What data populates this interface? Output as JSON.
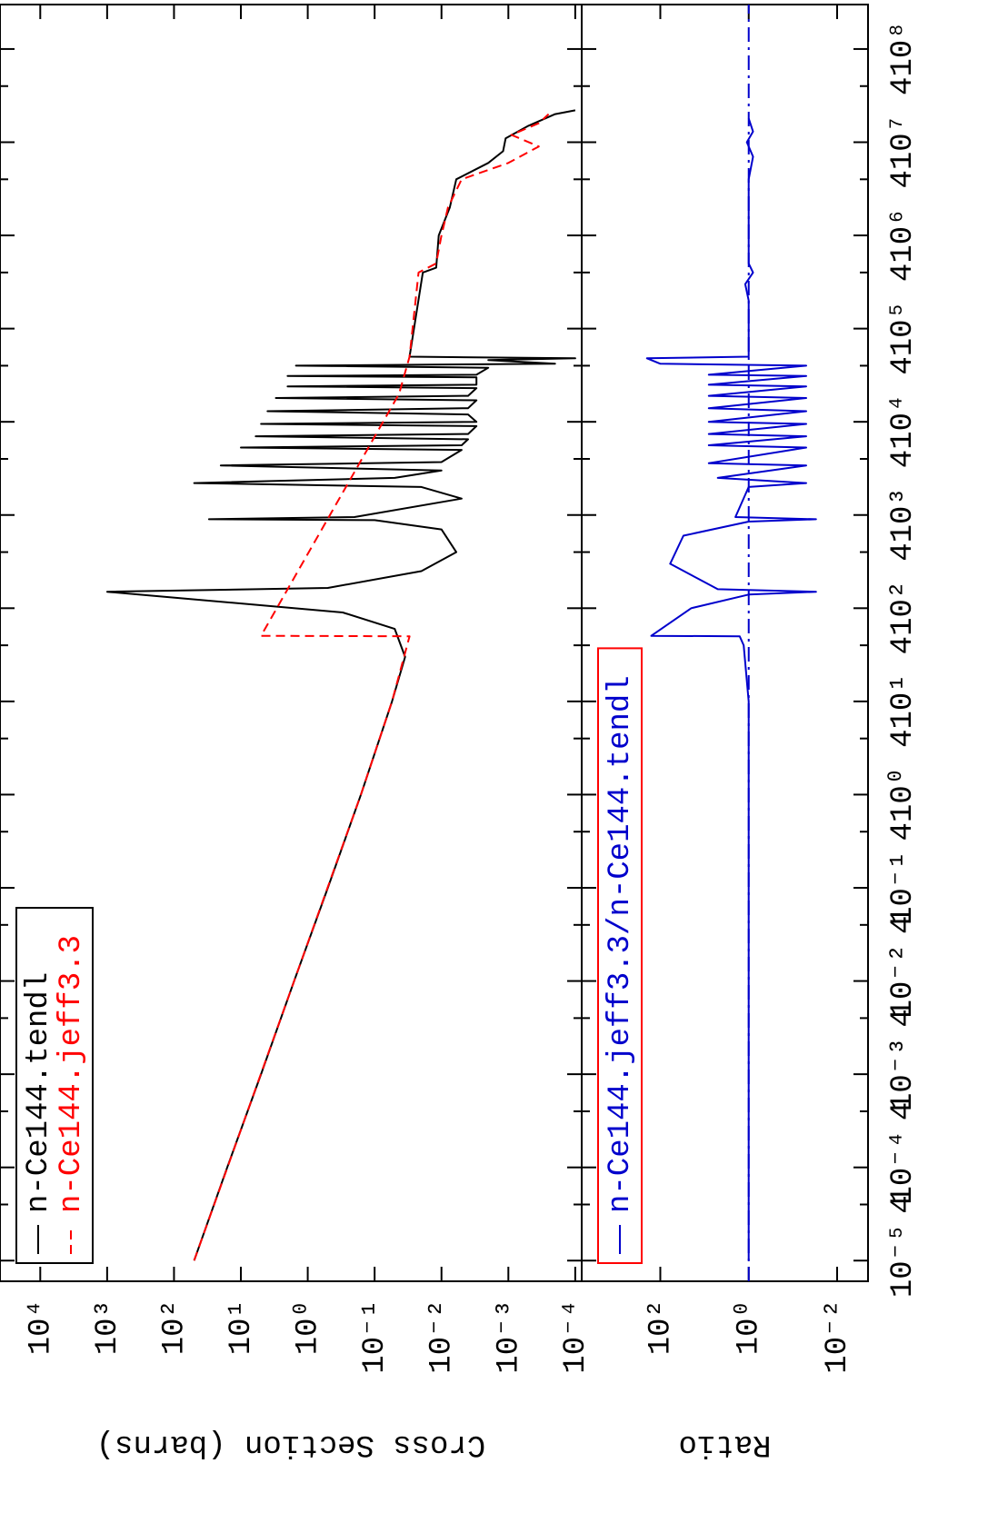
{
  "chart_data": [
    {
      "type": "line",
      "ylabel": "Cross Section (barns)",
      "yscale": "log",
      "xscale": "log",
      "xlim": [
        6e-06,
        300000000
      ],
      "ylim": [
        8e-05,
        40000
      ],
      "yticks": [
        {
          "value": 10000,
          "label": "10⁴"
        },
        {
          "value": 1000,
          "label": "10³"
        },
        {
          "value": 100,
          "label": "10²"
        },
        {
          "value": 10,
          "label": "10¹"
        },
        {
          "value": 1,
          "label": "10⁰"
        },
        {
          "value": 0.1,
          "label": "10⁻¹"
        },
        {
          "value": 0.01,
          "label": "10⁻²"
        },
        {
          "value": 0.001,
          "label": "10⁻³"
        },
        {
          "value": 0.0001,
          "label": "10⁻⁴"
        }
      ],
      "legend_edgecolor": "#000000",
      "series": [
        {
          "name": "n-Ce144.tendl",
          "color": "#000000",
          "dash": "solid",
          "x": [
            1e-05,
            0.0001,
            0.001,
            0.01,
            0.1,
            1,
            10,
            30,
            60,
            90,
            150,
            165,
            250,
            400,
            700,
            880,
            900,
            950,
            1500,
            2000,
            2200,
            2500,
            3000,
            3400,
            3700,
            5000,
            5300,
            5600,
            6500,
            7000,
            7400,
            9000,
            9500,
            10000,
            12000,
            13000,
            14000,
            17000,
            18000,
            19000,
            23000,
            24000,
            25000,
            30000,
            31000,
            32000,
            38000,
            40000,
            42000,
            46000,
            48000,
            50000,
            400000,
            450000,
            1000000,
            2000000,
            4000000,
            6000000,
            8000000,
            11000000,
            15000000,
            20000000,
            22000000
          ],
          "values": [
            50,
            16,
            5,
            1.6,
            0.5,
            0.16,
            0.055,
            0.035,
            0.05,
            0.3,
            1000,
            0.5,
            0.02,
            0.006,
            0.01,
            0.1,
            30,
            0.2,
            0.005,
            0.02,
            50,
            0.05,
            0.01,
            20,
            0.01,
            0.005,
            10,
            0.005,
            0.004,
            6,
            0.004,
            0.003,
            5,
            0.003,
            0.004,
            4,
            0.004,
            0.003,
            3,
            0.004,
            0.003,
            2,
            0.003,
            0.003,
            2,
            0.003,
            0.002,
            1.5,
            0.0002,
            0.002,
            0.0001,
            0.03,
            0.019,
            0.012,
            0.011,
            0.0075,
            0.006,
            0.002,
            0.0012,
            0.0011,
            0.0005,
            0.0002,
            0.0001
          ]
        },
        {
          "name": "n-Ce144.jeff3.3",
          "color": "#ff0000",
          "dash": "dashed",
          "x": [
            1e-05,
            0.01,
            1,
            10,
            50,
            50.5,
            20000,
            50000,
            400000,
            500000,
            1000000,
            2000000,
            4000000,
            6000000,
            9000000,
            12000000,
            16000000,
            20000000
          ],
          "values": [
            50,
            1.6,
            0.16,
            0.055,
            0.03,
            5,
            0.043,
            0.03,
            0.022,
            0.012,
            0.01,
            0.008,
            0.005,
            0.001,
            0.00035,
            0.0009,
            0.00035,
            0.00025
          ]
        }
      ]
    },
    {
      "type": "line",
      "ylabel": "Ratio",
      "yscale": "log",
      "xscale": "log",
      "xlim": [
        6e-06,
        300000000
      ],
      "ylim": [
        0.002,
        6000
      ],
      "yticks": [
        {
          "value": 100,
          "label": "10²"
        },
        {
          "value": 1,
          "label": "10⁰"
        },
        {
          "value": 0.01,
          "label": "10⁻²"
        }
      ],
      "xticks": [
        {
          "value": 1e-05,
          "label": "10⁻⁵"
        },
        {
          "value": 4e-05,
          "label": "4"
        },
        {
          "value": 0.0001,
          "label": "10⁻⁴"
        },
        {
          "value": 0.0004,
          "label": "4"
        },
        {
          "value": 0.001,
          "label": "10⁻³"
        },
        {
          "value": 0.004,
          "label": "4"
        },
        {
          "value": 0.01,
          "label": "10⁻²"
        },
        {
          "value": 0.04,
          "label": "4"
        },
        {
          "value": 0.1,
          "label": "10⁻¹"
        },
        {
          "value": 0.4,
          "label": "4"
        },
        {
          "value": 1,
          "label": "10⁰"
        },
        {
          "value": 4,
          "label": "4"
        },
        {
          "value": 10,
          "label": "10¹"
        },
        {
          "value": 40,
          "label": "4"
        },
        {
          "value": 100,
          "label": "10²"
        },
        {
          "value": 400,
          "label": "4"
        },
        {
          "value": 1000,
          "label": "10³"
        },
        {
          "value": 4000,
          "label": "4"
        },
        {
          "value": 10000,
          "label": "10⁴"
        },
        {
          "value": 40000,
          "label": "4"
        },
        {
          "value": 100000,
          "label": "10⁵"
        },
        {
          "value": 400000,
          "label": "4"
        },
        {
          "value": 1000000,
          "label": "10⁶"
        },
        {
          "value": 4000000,
          "label": "4"
        },
        {
          "value": 10000000,
          "label": "10⁷"
        },
        {
          "value": 40000000,
          "label": "4"
        },
        {
          "value": 100000000,
          "label": "10⁸"
        }
      ],
      "reference_line": 1,
      "legend_edgecolor": "#ff0000",
      "series": [
        {
          "name": "n-Ce144.jeff3.3/n-Ce144.tendl",
          "color": "#0000cc",
          "dash": "solid",
          "x": [
            1e-05,
            10,
            40,
            50,
            50.5,
            100,
            140,
            150,
            160,
            300,
            600,
            850,
            900,
            950,
            2000,
            2200,
            2500,
            3400,
            3600,
            5300,
            5600,
            7000,
            7400,
            9500,
            10000,
            13000,
            14000,
            18000,
            19000,
            24000,
            25000,
            31000,
            32000,
            40000,
            42000,
            48000,
            50000,
            200000,
            300000,
            400000,
            500000,
            4000000,
            7000000,
            10000000,
            13000000,
            18000000
          ],
          "values": [
            1,
            1,
            1.3,
            1.6,
            160,
            20,
            1,
            0.03,
            5,
            60,
            30,
            1,
            0.03,
            2,
            1,
            0.05,
            5,
            0.05,
            8,
            0.05,
            8,
            0.05,
            8,
            0.05,
            8,
            0.05,
            8,
            0.05,
            8,
            0.05,
            8,
            0.05,
            8,
            0.05,
            100,
            200,
            1,
            1,
            1.2,
            0.8,
            1,
            1,
            0.8,
            1.1,
            0.8,
            1
          ]
        }
      ]
    }
  ]
}
